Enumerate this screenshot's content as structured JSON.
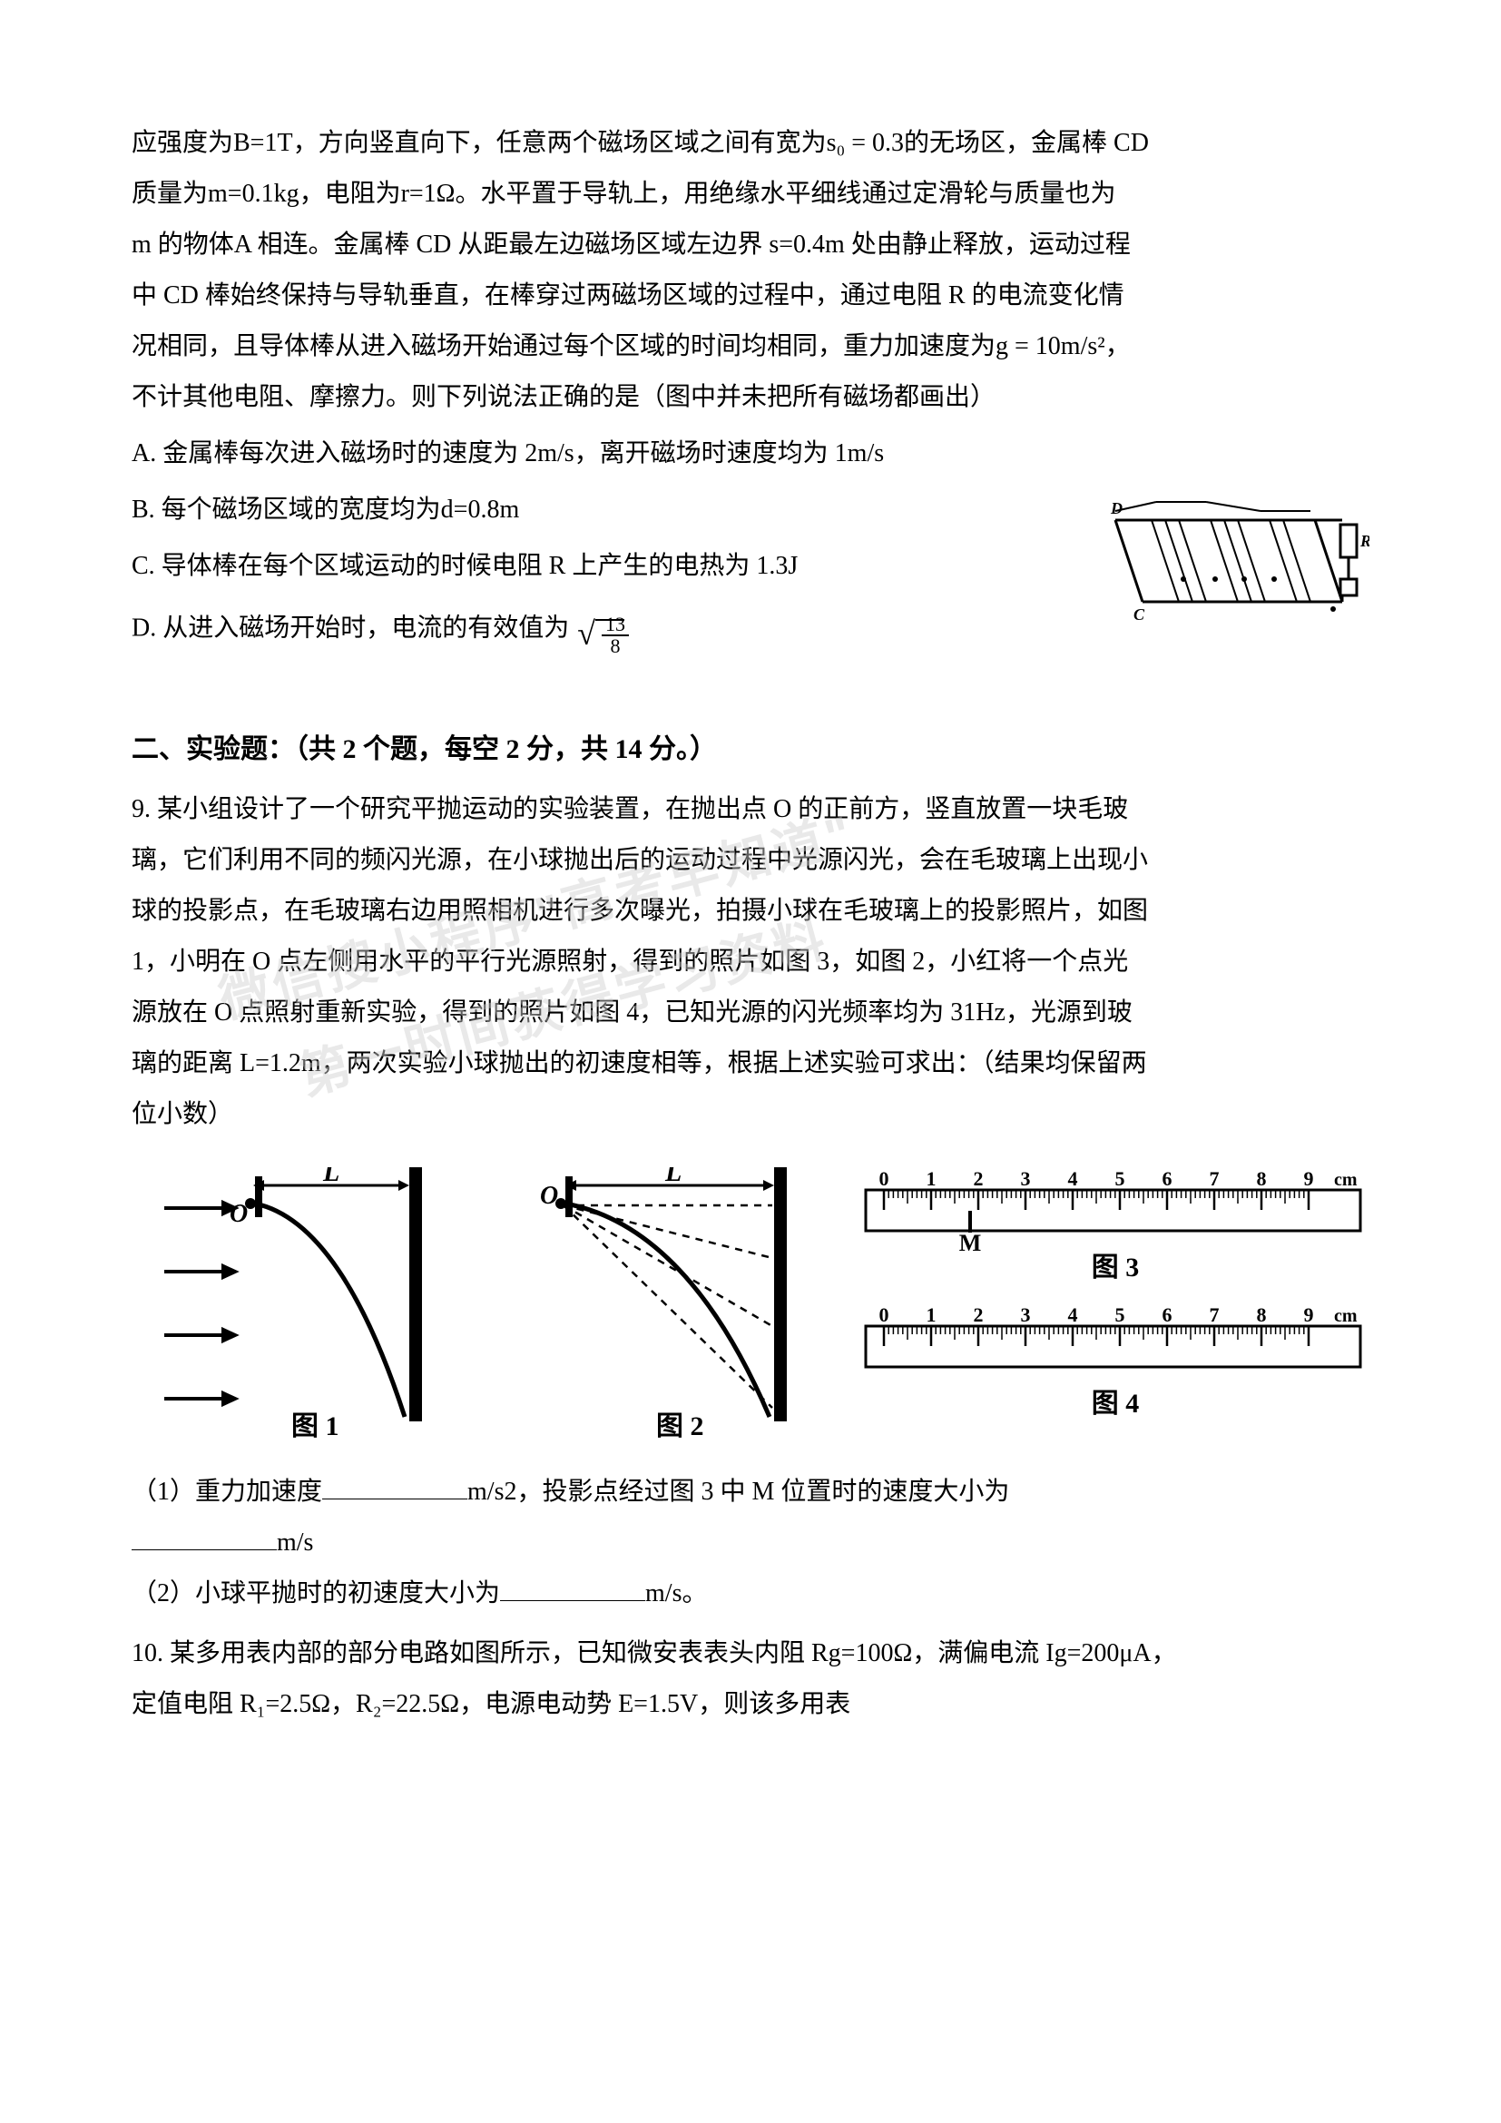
{
  "p1": {
    "line1": "应强度为B=1T，方向竖直向下，任意两个磁场区域之间有宽为s₀ = 0.3的无场区，金属棒 CD",
    "line2": "质量为m=0.1kg，电阻为r=1Ω。水平置于导轨上，用绝缘水平细线通过定滑轮与质量也为",
    "line3": "m 的物体A 相连。金属棒 CD 从距最左边磁场区域左边界 s=0.4m 处由静止释放，运动过程",
    "line4": "中 CD 棒始终保持与导轨垂直，在棒穿过两磁场区域的过程中，通过电阻 R 的电流变化情",
    "line5": "况相同，且导体棒从进入磁场开始通过每个区域的时间均相同，重力加速度为g = 10m/s²，",
    "line6": "不计其他电阻、摩擦力。则下列说法正确的是（图中并未把所有磁场都画出）",
    "optA": "A. 金属棒每次进入磁场时的速度为 2m/s，离开磁场时速度均为 1m/s",
    "optB": "B. 每个磁场区域的宽度均为d=0.8m",
    "optC": "C. 导体棒在每个区域运动的时候电阻 R 上产生的电热为 1.3J",
    "optD_prefix": "D. 从进入磁场开始时，电流的有效值为",
    "frac_num": "13",
    "frac_den": "8"
  },
  "section2": {
    "heading": "二、实验题：（共 2 个题，每空 2 分，共 14 分。）",
    "q9_line1": "9. 某小组设计了一个研究平抛运动的实验装置，在抛出点 O 的正前方，竖直放置一块毛玻",
    "q9_line2": "璃，它们利用不同的频闪光源，在小球抛出后的运动过程中光源闪光，会在毛玻璃上出现小",
    "q9_line3": "球的投影点，在毛玻璃右边用照相机进行多次曝光，拍摄小球在毛玻璃上的投影照片，如图",
    "q9_line4": "1，小明在 O 点左侧用水平的平行光源照射，得到的照片如图 3，如图 2，小红将一个点光",
    "q9_line5": "源放在 O 点照射重新实验，得到的照片如图 4，已知光源的闪光频率均为 31Hz，光源到玻",
    "q9_line6": "璃的距离 L=1.2m，两次实验小球抛出的初速度相等，根据上述实验可求出：（结果均保留两",
    "q9_line7": "位小数）",
    "fig1_label": "图 1",
    "fig2_label": "图 2",
    "fig3_label": "图 3",
    "fig4_label": "图 4",
    "q9_sub1_a": "（1）重力加速度",
    "q9_sub1_b": "m/s2，投影点经过图 3 中 M 位置时的速度大小为",
    "q9_sub1_c": "m/s",
    "q9_sub2_a": "（2）小球平抛时的初速度大小为",
    "q9_sub2_b": "m/s。",
    "q10_line1": "10. 某多用表内部的部分电路如图所示，已知微安表表头内阻 Rg=100Ω，满偏电流 Ig=200μA，",
    "q10_line2": "定值电阻 R₁=2.5Ω，R₂=22.5Ω，电源电动势 E=1.5V，则该多用表"
  },
  "ruler3": {
    "ticks": [
      "0",
      "1",
      "2",
      "3",
      "4",
      "5",
      "6",
      "7",
      "8",
      "9"
    ],
    "unit": "cm",
    "marker": "M"
  },
  "ruler4": {
    "ticks": [
      "0",
      "1",
      "2",
      "3",
      "4",
      "5",
      "6",
      "7",
      "8",
      "9"
    ],
    "unit": "cm"
  },
  "colors": {
    "text": "#000000",
    "bg": "#ffffff",
    "watermark": "#d0d0d0"
  },
  "watermarks": {
    "w1": "微信搜小程序\"高考早知道\"",
    "w2": "第一时间获得学习资料"
  }
}
